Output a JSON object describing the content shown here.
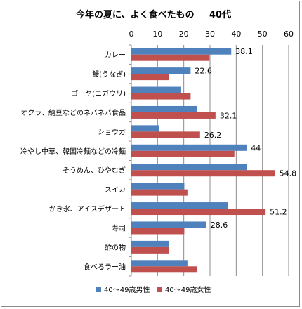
{
  "chart_data": {
    "type": "bar",
    "orientation": "horizontal",
    "title": "今年の夏に、よく食べたもの",
    "subtitle": "40代",
    "xlim": [
      0,
      60
    ],
    "xticks": [
      0,
      10,
      20,
      30,
      40,
      50,
      60
    ],
    "grid": true,
    "legend_position": "bottom",
    "categories": [
      "カレー",
      "鰻(うなぎ)",
      "ゴーヤ(ニガウリ)",
      "オクラ、納豆などのネバネバ食品",
      "ショウガ",
      "冷やし中華、韓国冷麺などの冷麺",
      "そうめん、ひやむぎ",
      "スイカ",
      "かき氷、アイスデザート",
      "寿司",
      "酢の物",
      "食べるラー油"
    ],
    "series": [
      {
        "name": "40～49歳男性",
        "color": "#4f81bd",
        "values": [
          38.1,
          22.6,
          19.0,
          25.0,
          10.7,
          44.0,
          44.0,
          20.2,
          36.9,
          28.6,
          14.3,
          21.4
        ],
        "labels": [
          "38.1",
          "22.6",
          "",
          "",
          "",
          "44",
          "",
          "",
          "",
          "28.6",
          "",
          ""
        ]
      },
      {
        "name": "40～49歳女性",
        "color": "#c0504d",
        "values": [
          29.8,
          14.3,
          22.6,
          32.1,
          26.2,
          39.3,
          54.8,
          21.4,
          51.2,
          20.2,
          14.3,
          25.0
        ],
        "labels": [
          "",
          "",
          "",
          "32.1",
          "26.2",
          "",
          "54.8",
          "",
          "51.2",
          "",
          "",
          ""
        ]
      }
    ]
  }
}
